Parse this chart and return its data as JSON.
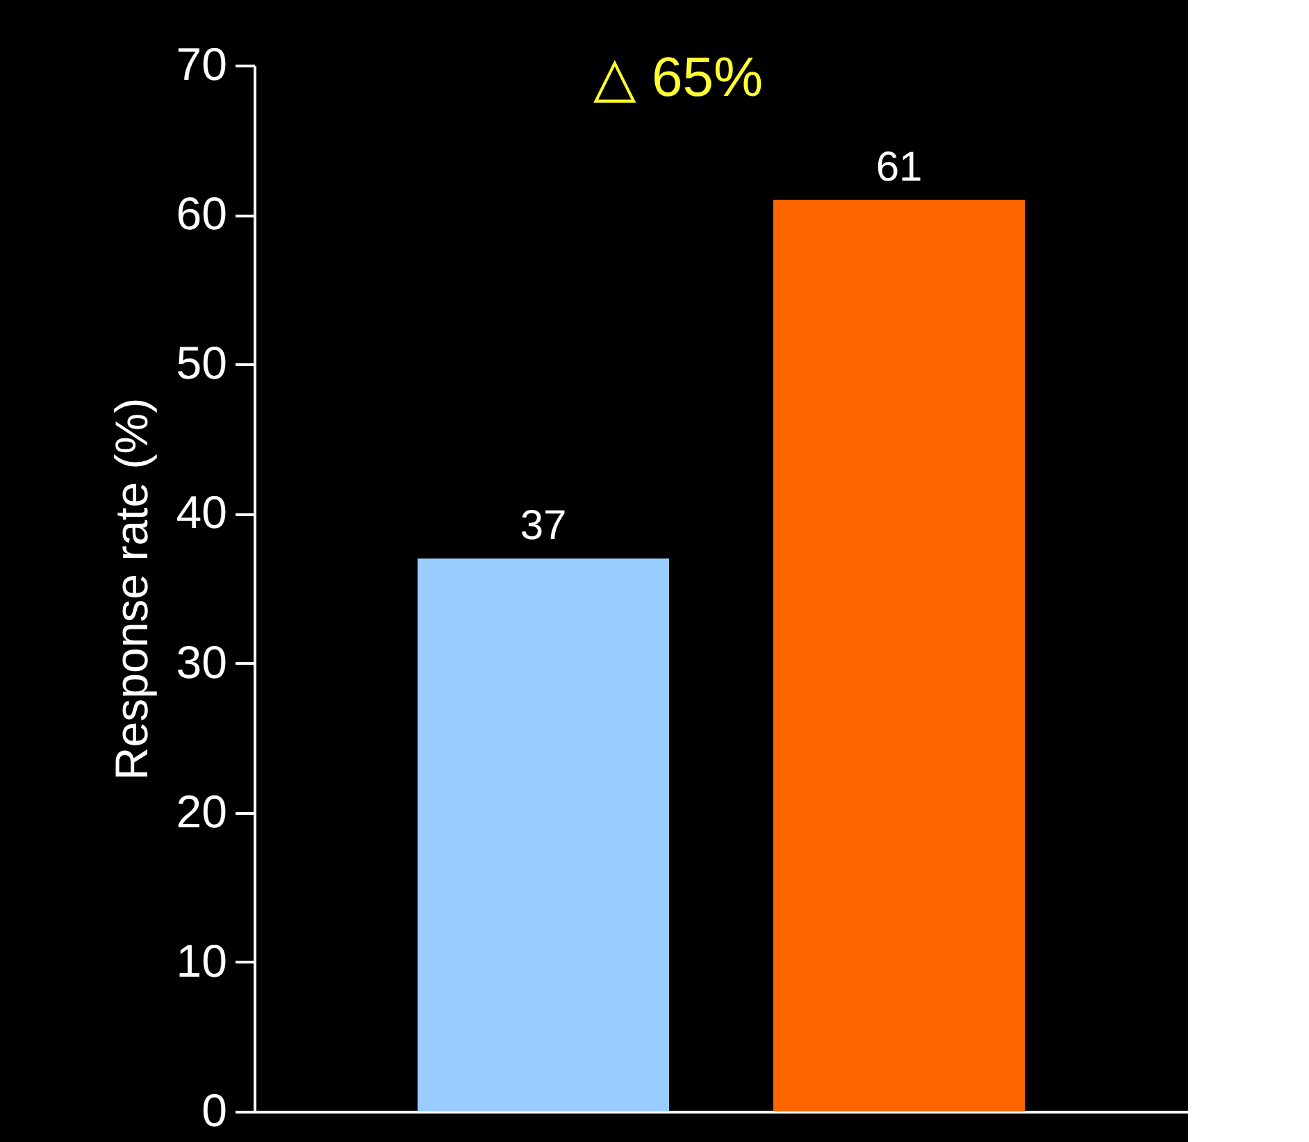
{
  "chart_data": {
    "type": "bar",
    "ylabel": "Response rate (%)",
    "categories": [
      null,
      null
    ],
    "values": [
      37,
      61
    ],
    "colors": [
      "#99ccff",
      "#ff6600"
    ],
    "ylim": [
      0,
      70
    ],
    "yticks": [
      0,
      10,
      20,
      30,
      40,
      50,
      60,
      70
    ],
    "grid": false,
    "data_labels": true,
    "annotations": [
      "△ 65%"
    ]
  }
}
